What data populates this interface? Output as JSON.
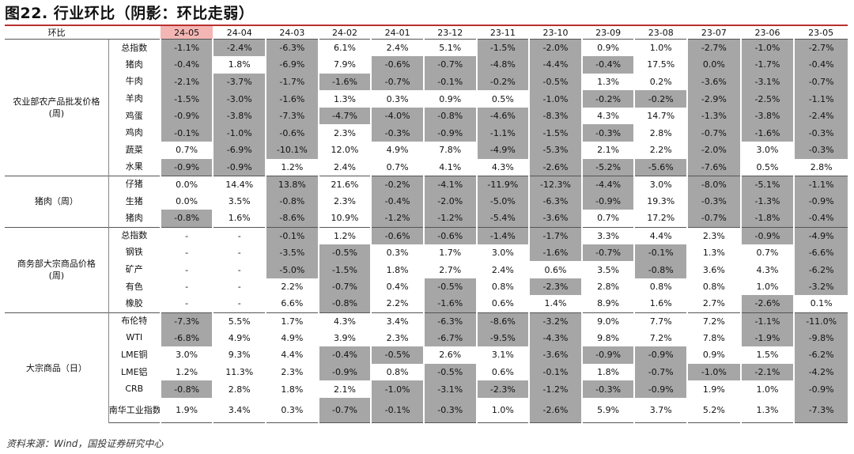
{
  "title": "图22. 行业环比（阴影：环比走弱）",
  "corner_label": "环比",
  "periods": [
    "24-05",
    "24-04",
    "24-03",
    "24-02",
    "24-01",
    "23-12",
    "23-11",
    "23-10",
    "23-09",
    "23-08",
    "23-07",
    "23-06",
    "23-05"
  ],
  "highlight_period": "24-05",
  "groups": [
    {
      "name": "农业部农产品批发价格\n(周)",
      "rows": [
        {
          "label": "总指数",
          "values": [
            "-1.1%",
            "-2.4%",
            "-6.3%",
            "6.1%",
            "2.4%",
            "5.1%",
            "-1.5%",
            "-2.0%",
            "0.9%",
            "1.0%",
            "-2.7%",
            "-1.0%",
            "-2.7%"
          ],
          "shaded": [
            1,
            1,
            1,
            0,
            0,
            0,
            1,
            1,
            0,
            0,
            1,
            1,
            1
          ]
        },
        {
          "label": "猪肉",
          "values": [
            "-0.4%",
            "1.8%",
            "-6.9%",
            "7.9%",
            "-0.6%",
            "-0.7%",
            "-4.8%",
            "-4.4%",
            "-0.4%",
            "17.5%",
            "0.0%",
            "-1.7%",
            "-0.4%"
          ],
          "shaded": [
            1,
            0,
            1,
            0,
            1,
            1,
            1,
            1,
            1,
            0,
            1,
            1,
            1
          ]
        },
        {
          "label": "牛肉",
          "values": [
            "-2.1%",
            "-3.7%",
            "-1.7%",
            "-1.6%",
            "-0.7%",
            "-0.1%",
            "-0.2%",
            "-0.5%",
            "1.3%",
            "0.2%",
            "-3.6%",
            "-3.1%",
            "-0.7%"
          ],
          "shaded": [
            1,
            1,
            1,
            1,
            1,
            1,
            1,
            1,
            0,
            0,
            1,
            1,
            1
          ]
        },
        {
          "label": "羊肉",
          "values": [
            "-1.5%",
            "-3.0%",
            "-1.6%",
            "1.3%",
            "0.3%",
            "0.9%",
            "0.5%",
            "-1.0%",
            "-0.2%",
            "-0.2%",
            "-2.9%",
            "-2.5%",
            "-1.1%"
          ],
          "shaded": [
            1,
            1,
            1,
            0,
            0,
            0,
            0,
            1,
            1,
            1,
            1,
            1,
            1
          ]
        },
        {
          "label": "鸡蛋",
          "values": [
            "-0.9%",
            "-3.8%",
            "-7.3%",
            "-4.7%",
            "-4.0%",
            "-0.8%",
            "-4.6%",
            "-8.3%",
            "4.3%",
            "14.7%",
            "-1.3%",
            "-3.8%",
            "-2.4%"
          ],
          "shaded": [
            1,
            1,
            1,
            1,
            1,
            1,
            1,
            1,
            0,
            0,
            1,
            1,
            1
          ]
        },
        {
          "label": "鸡肉",
          "values": [
            "-0.1%",
            "-1.0%",
            "-0.6%",
            "2.3%",
            "-0.3%",
            "-0.9%",
            "-1.1%",
            "-1.5%",
            "-0.3%",
            "2.8%",
            "-0.7%",
            "-1.6%",
            "-0.3%"
          ],
          "shaded": [
            1,
            1,
            1,
            0,
            1,
            1,
            1,
            1,
            1,
            0,
            1,
            1,
            1
          ]
        },
        {
          "label": "蔬菜",
          "values": [
            "0.7%",
            "-6.9%",
            "-10.1%",
            "12.0%",
            "4.9%",
            "7.8%",
            "-4.9%",
            "-5.3%",
            "2.1%",
            "2.2%",
            "-2.0%",
            "3.0%",
            "-0.3%"
          ],
          "shaded": [
            0,
            1,
            1,
            0,
            0,
            0,
            1,
            1,
            0,
            0,
            1,
            0,
            1
          ]
        },
        {
          "label": "水果",
          "values": [
            "-0.9%",
            "-0.9%",
            "1.2%",
            "2.4%",
            "0.7%",
            "4.1%",
            "4.3%",
            "-2.6%",
            "-5.2%",
            "-5.6%",
            "-7.6%",
            "0.5%",
            "2.8%"
          ],
          "shaded": [
            1,
            1,
            0,
            0,
            0,
            0,
            0,
            1,
            1,
            1,
            1,
            0,
            0
          ]
        }
      ]
    },
    {
      "name": "猪肉（周）",
      "rows": [
        {
          "label": "仔猪",
          "values": [
            "0.0%",
            "14.4%",
            "13.8%",
            "21.6%",
            "-0.2%",
            "-4.1%",
            "-11.9%",
            "-12.3%",
            "-4.4%",
            "3.0%",
            "-8.0%",
            "-5.1%",
            "-1.1%"
          ],
          "shaded": [
            0,
            0,
            1,
            0,
            1,
            1,
            1,
            1,
            1,
            0,
            1,
            1,
            1
          ]
        },
        {
          "label": "生猪",
          "values": [
            "0.0%",
            "3.5%",
            "-0.8%",
            "2.3%",
            "-0.4%",
            "-2.0%",
            "-5.0%",
            "-6.3%",
            "-0.9%",
            "19.3%",
            "-0.3%",
            "-1.3%",
            "-0.9%"
          ],
          "shaded": [
            0,
            0,
            1,
            0,
            1,
            1,
            1,
            1,
            1,
            0,
            1,
            1,
            1
          ]
        },
        {
          "label": "猪肉",
          "values": [
            "-0.8%",
            "1.6%",
            "-8.6%",
            "10.9%",
            "-1.2%",
            "-1.2%",
            "-5.4%",
            "-3.6%",
            "0.7%",
            "17.2%",
            "-0.7%",
            "-1.8%",
            "-0.4%"
          ],
          "shaded": [
            1,
            0,
            1,
            0,
            1,
            1,
            1,
            1,
            0,
            0,
            1,
            1,
            1
          ]
        }
      ]
    },
    {
      "name": "商务部大宗商品价格\n(周)",
      "rows": [
        {
          "label": "总指数",
          "values": [
            "-",
            "-",
            "-0.1%",
            "1.2%",
            "-0.6%",
            "-0.6%",
            "-1.4%",
            "-1.7%",
            "3.3%",
            "4.4%",
            "2.3%",
            "-0.9%",
            "-4.9%"
          ],
          "shaded": [
            0,
            0,
            1,
            0,
            1,
            1,
            1,
            1,
            0,
            0,
            0,
            1,
            1
          ]
        },
        {
          "label": "钢铁",
          "values": [
            "-",
            "-",
            "-3.5%",
            "-0.5%",
            "0.3%",
            "1.7%",
            "3.0%",
            "-1.6%",
            "-0.7%",
            "-0.1%",
            "1.3%",
            "0.7%",
            "-6.6%"
          ],
          "shaded": [
            0,
            0,
            1,
            1,
            0,
            0,
            0,
            1,
            1,
            1,
            0,
            0,
            1
          ]
        },
        {
          "label": "矿产",
          "values": [
            "-",
            "-",
            "-5.0%",
            "-1.5%",
            "1.8%",
            "2.7%",
            "2.4%",
            "0.6%",
            "3.5%",
            "-0.8%",
            "3.6%",
            "4.3%",
            "-6.2%"
          ],
          "shaded": [
            0,
            0,
            1,
            1,
            0,
            0,
            0,
            0,
            0,
            1,
            0,
            0,
            1
          ]
        },
        {
          "label": "有色",
          "values": [
            "-",
            "-",
            "2.2%",
            "-0.7%",
            "0.4%",
            "-0.5%",
            "0.8%",
            "-2.3%",
            "2.8%",
            "0.8%",
            "0.8%",
            "1.0%",
            "-3.2%"
          ],
          "shaded": [
            0,
            0,
            0,
            1,
            0,
            1,
            0,
            1,
            0,
            0,
            0,
            0,
            1
          ]
        },
        {
          "label": "橡胶",
          "values": [
            "-",
            "-",
            "6.6%",
            "-0.8%",
            "2.2%",
            "-1.6%",
            "0.6%",
            "1.4%",
            "8.9%",
            "1.6%",
            "2.7%",
            "-2.6%",
            "0.1%"
          ],
          "shaded": [
            0,
            0,
            0,
            1,
            0,
            1,
            0,
            0,
            0,
            0,
            0,
            1,
            0
          ]
        }
      ]
    },
    {
      "name": "大宗商品（日）",
      "rows": [
        {
          "label": "布伦特",
          "values": [
            "-7.3%",
            "5.5%",
            "1.7%",
            "4.3%",
            "3.4%",
            "-6.3%",
            "-8.6%",
            "-3.2%",
            "9.0%",
            "7.7%",
            "7.2%",
            "-1.1%",
            "-11.0%"
          ],
          "shaded": [
            1,
            0,
            0,
            0,
            0,
            1,
            1,
            1,
            0,
            0,
            0,
            1,
            1
          ]
        },
        {
          "label": "WTI",
          "values": [
            "-6.8%",
            "4.9%",
            "4.9%",
            "3.9%",
            "2.3%",
            "-6.7%",
            "-9.5%",
            "-4.3%",
            "9.8%",
            "7.2%",
            "7.8%",
            "-1.9%",
            "-9.8%"
          ],
          "shaded": [
            1,
            0,
            0,
            0,
            0,
            1,
            1,
            1,
            0,
            0,
            0,
            1,
            1
          ]
        },
        {
          "label": "LME铜",
          "values": [
            "3.0%",
            "9.3%",
            "4.4%",
            "-0.4%",
            "-0.5%",
            "2.6%",
            "3.1%",
            "-3.6%",
            "-0.9%",
            "-0.9%",
            "0.9%",
            "1.5%",
            "-6.2%"
          ],
          "shaded": [
            0,
            0,
            0,
            1,
            1,
            0,
            0,
            1,
            1,
            1,
            0,
            0,
            1
          ]
        },
        {
          "label": "LME铝",
          "values": [
            "1.2%",
            "11.3%",
            "2.3%",
            "-0.9%",
            "0.8%",
            "-0.5%",
            "0.6%",
            "-0.1%",
            "1.8%",
            "-0.7%",
            "-1.0%",
            "-2.1%",
            "-4.2%"
          ],
          "shaded": [
            0,
            0,
            0,
            1,
            0,
            1,
            0,
            1,
            0,
            1,
            1,
            1,
            1
          ]
        },
        {
          "label": "CRB",
          "values": [
            "-0.8%",
            "2.8%",
            "1.8%",
            "2.1%",
            "-1.0%",
            "-3.1%",
            "-2.3%",
            "-1.2%",
            "-0.3%",
            "-0.9%",
            "1.9%",
            "1.0%",
            "-0.9%"
          ],
          "shaded": [
            1,
            0,
            0,
            0,
            1,
            1,
            1,
            1,
            1,
            1,
            0,
            0,
            1
          ]
        },
        {
          "label": "南华工业指数",
          "values": [
            "1.9%",
            "3.4%",
            "0.3%",
            "-0.7%",
            "-0.1%",
            "-0.3%",
            "1.0%",
            "-2.6%",
            "5.9%",
            "3.7%",
            "5.2%",
            "1.3%",
            "-7.3%"
          ],
          "shaded": [
            0,
            0,
            0,
            1,
            1,
            1,
            0,
            1,
            0,
            0,
            0,
            0,
            1
          ]
        }
      ]
    }
  ],
  "source": "资料来源：Wind，国投证券研究中心",
  "colors": {
    "shade": "#a6a6a6",
    "highlight": "#f4b6b4",
    "title_rule": "#b8312f"
  }
}
